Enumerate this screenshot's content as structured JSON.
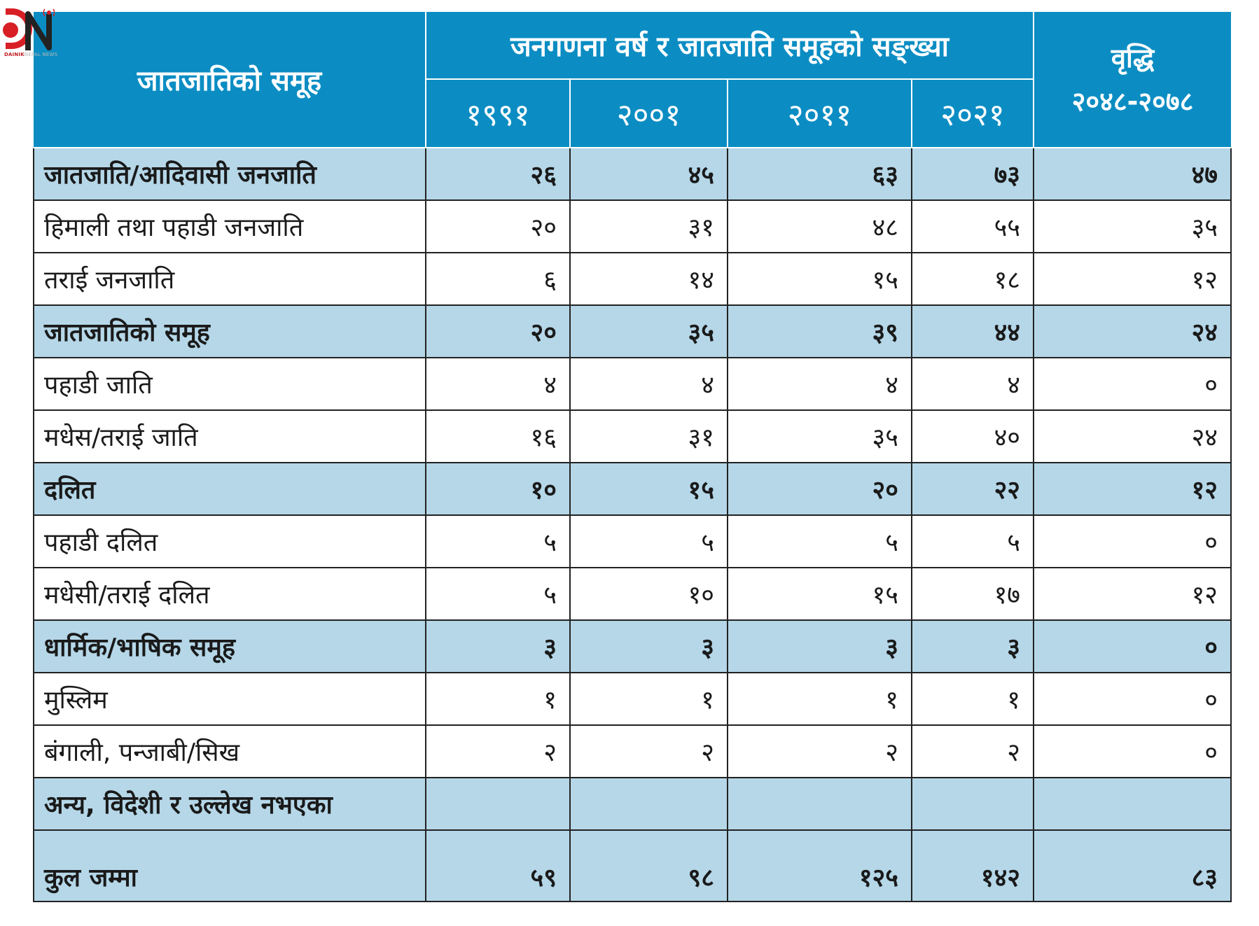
{
  "logo": {
    "brand_bold": "DAINIK",
    "brand_light": "NEPAL NEWS"
  },
  "header": {
    "group_label": "जातजातिको समूह",
    "census_title": "जनगणना वर्ष र जातजाति समूहको सङ्ख्या",
    "years": [
      "१९९१",
      "२००१",
      "२०११",
      "२०२१"
    ],
    "growth_label": "वृद्धि",
    "growth_range": "२०४८-२०७८"
  },
  "rows": [
    {
      "type": "cat",
      "label": "जातजाति/आदिवासी जनजाति",
      "values": [
        "२६",
        "४५",
        "६३",
        "७३",
        "४७"
      ]
    },
    {
      "type": "sub",
      "label": "हिमाली तथा पहाडी जनजाति",
      "values": [
        "२०",
        "३१",
        "४८",
        "५५",
        "३५"
      ]
    },
    {
      "type": "sub",
      "label": "तराई जनजाति",
      "values": [
        "६",
        "१४",
        "१५",
        "१८",
        "१२"
      ]
    },
    {
      "type": "cat",
      "label": "जातजातिको समूह",
      "values": [
        "२०",
        "३५",
        "३९",
        "४४",
        "२४"
      ]
    },
    {
      "type": "sub",
      "label": "पहाडी जाति",
      "values": [
        "४",
        "४",
        "४",
        "४",
        "०"
      ]
    },
    {
      "type": "sub",
      "label": "मधेस/तराई जाति",
      "values": [
        "१६",
        "३१",
        "३५",
        "४०",
        "२४"
      ]
    },
    {
      "type": "cat",
      "label": "दलित",
      "values": [
        "१०",
        "१५",
        "२०",
        "२२",
        "१२"
      ]
    },
    {
      "type": "sub",
      "label": "पहाडी दलित",
      "values": [
        "५",
        "५",
        "५",
        "५",
        "०"
      ]
    },
    {
      "type": "sub",
      "label": "मधेसी/तराई दलित",
      "values": [
        "५",
        "१०",
        "१५",
        "१७",
        "१२"
      ]
    },
    {
      "type": "cat",
      "label": "धार्मिक/भाषिक समूह",
      "values": [
        "३",
        "३",
        "३",
        "३",
        "०"
      ]
    },
    {
      "type": "sub",
      "label": "मुस्लिम",
      "values": [
        "१",
        "१",
        "१",
        "१",
        "०"
      ]
    },
    {
      "type": "sub",
      "label": "बंगाली, पन्जाबी/सिख",
      "values": [
        "२",
        "२",
        "२",
        "२",
        "०"
      ]
    },
    {
      "type": "cat",
      "label": "अन्य, विदेशी र उल्लेख नभएका",
      "values": [
        "",
        "",
        "",
        "",
        ""
      ]
    },
    {
      "type": "total",
      "label": "कुल जम्मा",
      "values": [
        "५९",
        "९८",
        "१२५",
        "१४२",
        "८३"
      ]
    }
  ],
  "colors": {
    "header_blue": "#0b8dc3",
    "category_row": "#b5d7e8",
    "border": "#222222",
    "logo_red": "#d81f26"
  }
}
